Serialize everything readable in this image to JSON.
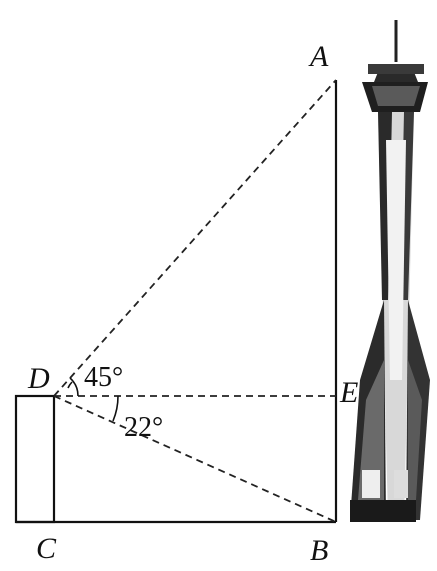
{
  "points": {
    "A": "A",
    "B": "B",
    "C": "C",
    "D": "D",
    "E": "E"
  },
  "angles": {
    "elevation": "45°",
    "depression": "22°"
  },
  "tower": {
    "description_icon": "tower-icon"
  },
  "colors": {
    "line": "#111111",
    "tower_dark": "#1a1a1a",
    "tower_light": "#e8e8e8"
  }
}
